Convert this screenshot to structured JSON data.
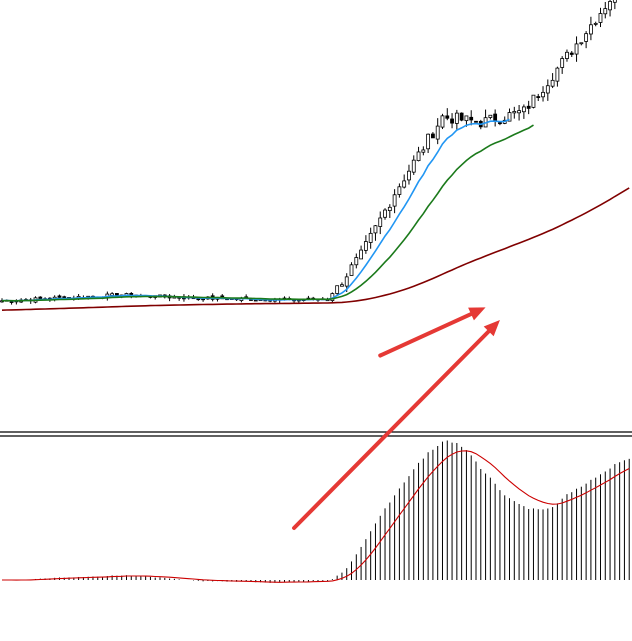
{
  "chart_data": {
    "type": "candlestick",
    "title": "",
    "xlabel": "",
    "ylabel": "",
    "grid": false,
    "background_color": "#ffffff",
    "price_panel": {
      "bars": 132,
      "ylim": [
        0,
        100
      ],
      "close_anchors": [
        [
          0,
          9.8
        ],
        [
          25,
          11.4
        ],
        [
          40,
          10.5
        ],
        [
          60,
          10.0
        ],
        [
          68,
          10.3
        ],
        [
          75,
          22
        ],
        [
          82,
          39
        ],
        [
          92,
          59.5
        ],
        [
          100,
          58
        ],
        [
          109,
          61
        ],
        [
          119,
          77.5
        ],
        [
          132,
          100
        ]
      ],
      "moving_averages": [
        {
          "period": 8,
          "color": "#2196f3",
          "visible_end": 107
        },
        {
          "period": 21,
          "color": "#1b7a1b",
          "visible_end": 112
        },
        {
          "period": 144,
          "color": "#800000"
        }
      ],
      "arrow": {
        "color": "#e53935",
        "from": [
          79,
          -5
        ],
        "to": [
          101,
          8
        ]
      }
    },
    "indicator_panel": {
      "type": "histogram",
      "bar_color": "#000000",
      "signal_color": "#cc0000",
      "ylim": [
        -1,
        10
      ],
      "zero": 0,
      "arrow": {
        "color": "#e53935",
        "from": [
          61,
          4
        ],
        "to": [
          104,
          20
        ]
      }
    },
    "separator_color": "#000000"
  }
}
